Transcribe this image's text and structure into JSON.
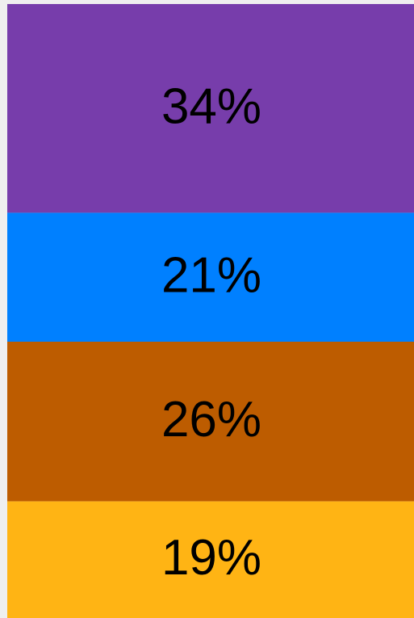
{
  "chart_data": {
    "type": "stacked_bar",
    "values": [
      34,
      21,
      26,
      19
    ],
    "value_labels": [
      "34%",
      "21%",
      "26%",
      "19%"
    ],
    "colors": [
      "#773dab",
      "#0080ff",
      "#bd5c00",
      "#ffb414"
    ],
    "ylim": [
      0,
      100
    ]
  }
}
